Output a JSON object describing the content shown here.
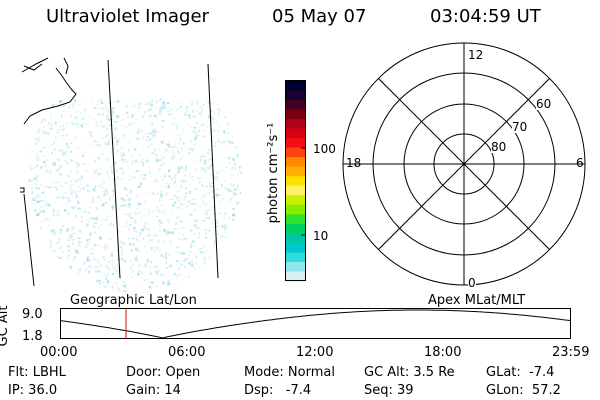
{
  "header": {
    "instrument": "Ultraviolet Imager",
    "date": "05 May 07",
    "time": "03:04:59 UT"
  },
  "colorbar": {
    "unit_label": "photon cm⁻²s⁻¹",
    "tick_labels": [
      "100",
      "10"
    ],
    "colors": [
      "#000033",
      "#1a0030",
      "#400020",
      "#7a0010",
      "#b0001a",
      "#d80010",
      "#f41010",
      "#ff4010",
      "#ff8a00",
      "#ffb000",
      "#ffe000",
      "#fff06a",
      "#c8f000",
      "#88ee00",
      "#30e030",
      "#00d060",
      "#00c8a0",
      "#00c8d0",
      "#30d8e0",
      "#90e6ec",
      "#d4f0f4"
    ]
  },
  "polar_plot": {
    "mlt_labels": {
      "top": "12",
      "left": "18",
      "right": "6",
      "bottom": "0"
    },
    "lat_labels": [
      "60",
      "70",
      "80"
    ]
  },
  "labels": {
    "left_panel": "Geographic Lat/Lon",
    "right_panel": "Apex MLat/MLT"
  },
  "timeline": {
    "axis_label": "GC Alt",
    "y_ticks": [
      "9.0",
      "1.8"
    ],
    "x_ticks": [
      "00:00",
      "06:00",
      "12:00",
      "18:00",
      "23:59"
    ],
    "current_time_fraction": 0.1285
  },
  "status": {
    "flt": "Flt: LBHL",
    "door": "Door: Open",
    "mode": "Mode: Normal",
    "gc_alt": "GC Alt: 3.5 Re",
    "glat": "GLat:  -7.4",
    "ip": "IP: 36.0",
    "gain": "Gain: 14",
    "dsp": "Dsp:   -7.4",
    "seq": "Seq: 39",
    "glon": "GLon:  57.2"
  }
}
